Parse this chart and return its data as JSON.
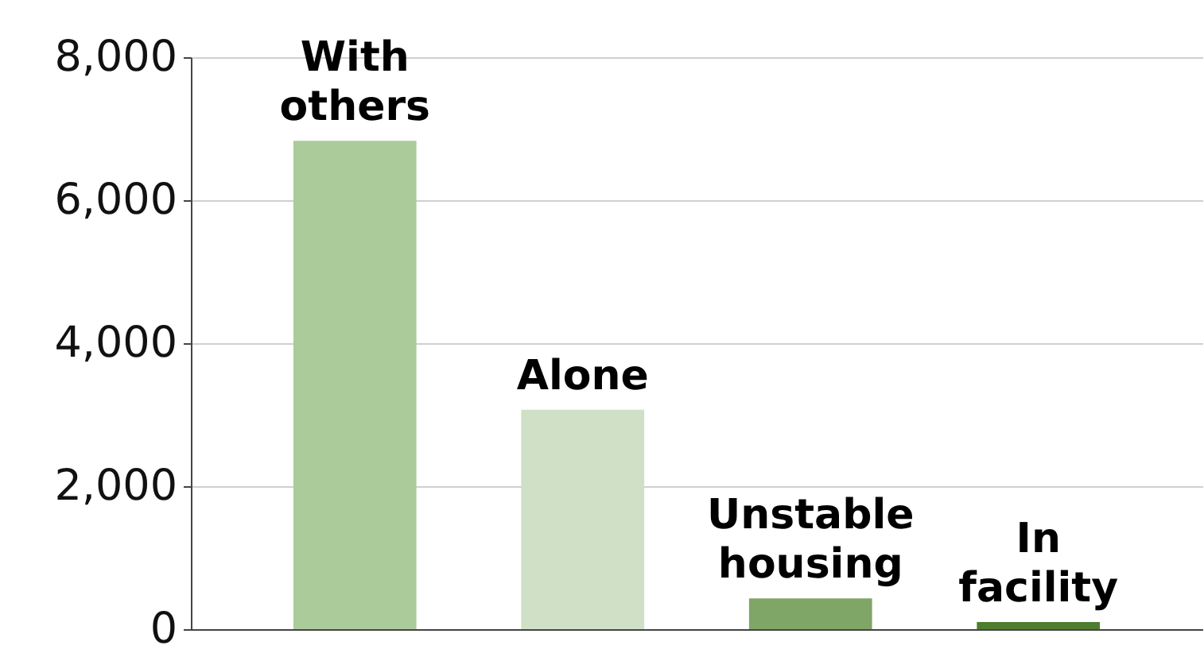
{
  "chart_data": {
    "type": "bar",
    "categories": [
      "With others",
      "Alone",
      "Unstable housing",
      "In facility"
    ],
    "values": [
      6830,
      3070,
      430,
      100
    ],
    "colors": [
      "#abcb9a",
      "#cfe0c7",
      "#80a667",
      "#4e7d2d"
    ],
    "ylim": [
      0,
      8000
    ],
    "yticks": [
      0,
      {
        "value": 2000,
        "label": "2,000"
      },
      {
        "value": 4000,
        "label": "4,000"
      },
      {
        "value": 6000,
        "label": "6,000"
      },
      {
        "value": 8000,
        "label": "8,000"
      }
    ],
    "grid": "y",
    "tick_labels": "y"
  }
}
